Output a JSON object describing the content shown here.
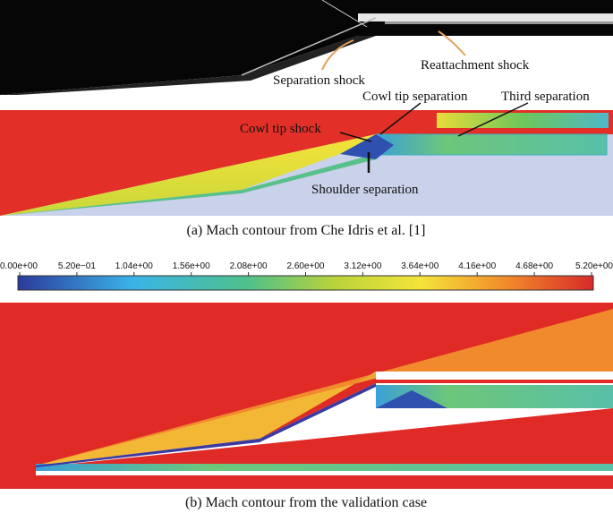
{
  "panel_a": {
    "caption": "(a) Mach contour from Che Idris et al. [1]",
    "annotations": [
      "Separation shock",
      "Reattachment shock",
      "Cowl tip separation",
      "Third separation",
      "Cowl tip shock",
      "Shoulder separation"
    ]
  },
  "colorbar": {
    "range": [
      0,
      5.2
    ],
    "ticks": [
      {
        "value": 0,
        "label": "0.00e+00"
      },
      {
        "value": 0.52,
        "label": "5.20e−01"
      },
      {
        "value": 1.04,
        "label": "1.04e+00"
      },
      {
        "value": 1.56,
        "label": "1.56e+00"
      },
      {
        "value": 2.08,
        "label": "2.08e+00"
      },
      {
        "value": 2.6,
        "label": "2.60e+00"
      },
      {
        "value": 3.12,
        "label": "3.12e+00"
      },
      {
        "value": 3.64,
        "label": "3.64e+00"
      },
      {
        "value": 4.16,
        "label": "4.16e+00"
      },
      {
        "value": 4.68,
        "label": "4.68e+00"
      },
      {
        "value": 5.2,
        "label": "5.20e+00"
      }
    ]
  },
  "panel_b": {
    "caption": "(b) Mach contour from the validation case"
  }
}
